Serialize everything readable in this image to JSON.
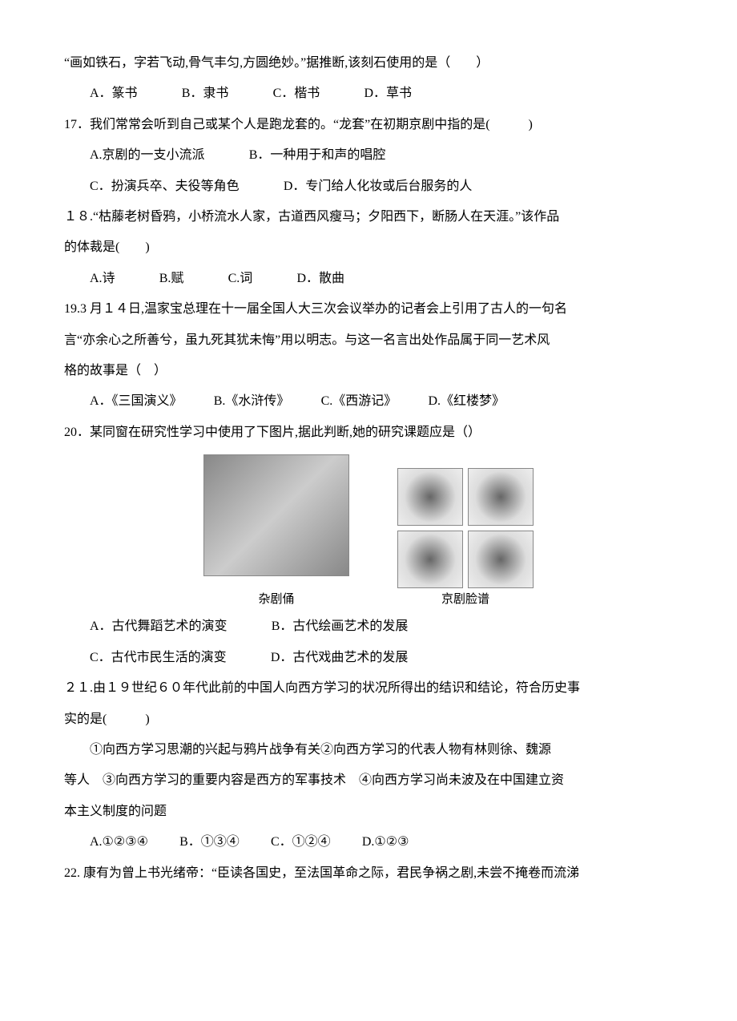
{
  "l1": "“画如铁石，字若飞动,骨气丰匀,方圆绝妙。”据推断,该刻石使用的是（　　）",
  "q16": {
    "A": "A．篆书",
    "B": "B．隶书",
    "C": "C．楷书",
    "D": "D．草书"
  },
  "q17": {
    "stem": "17．我们常常会听到自己或某个人是跑龙套的。“龙套”在初期京剧中指的是(　　　)",
    "A": "A.京剧的一支小流派",
    "B": "B．一种用于和声的唱腔",
    "C": "C．扮演兵卒、夫役等角色",
    "D": "D．专门给人化妆或后台服务的人"
  },
  "q18": {
    "stem1": "１８.“枯藤老树昏鸦，小桥流水人家，古道西风瘦马；夕阳西下，断肠人在天涯。”该作品",
    "stem2": "的体裁是(　　)",
    "A": "A.诗",
    "B": "B.赋",
    "C": "C.词",
    "D": "D．散曲"
  },
  "q19": {
    "stem1": "19.3 月１４日,温家宝总理在十一届全国人大三次会议举办的记者会上引用了古人的一句名",
    "stem2": "言“亦余心之所善兮，虽九死其犹未悔”用以明志。与这一名言出处作品属于同一艺术风",
    "stem3": "格的故事是（　）",
    "A": "A．《三国演义》",
    "B": "B.《水浒传》",
    "C": "C.《西游记》",
    "D": "D.《红楼梦》"
  },
  "q20": {
    "stem": "20．某同窗在研究性学习中使用了下图片,据此判断,她的研究课题应是（）",
    "cap1": "杂剧俑",
    "cap2": "京剧脸谱",
    "A": "A．古代舞蹈艺术的演变",
    "B": "B．古代绘画艺术的发展",
    "C": "C．古代市民生活的演变",
    "D": "D．古代戏曲艺术的发展",
    "img_style": {
      "zaju_w": 180,
      "zaju_h": 150,
      "lianpu_w": 80,
      "lianpu_h": 70,
      "gap": 60
    }
  },
  "q21": {
    "stem1": "２１.由１９世纪６０年代此前的中国人向西方学习的状况所得出的结识和结论，符合历史事",
    "stem2": "实的是(　　　)",
    "sub1": "　　①向西方学习思潮的兴起与鸦片战争有关②向西方学习的代表人物有林则徐、魏源",
    "sub2": "等人　③向西方学习的重要内容是西方的军事技术　④向西方学习尚未波及在中国建立资",
    "sub3": "本主义制度的问题",
    "A": "A.①②③④",
    "B": "B．①③④",
    "C": "C．①②④",
    "D": "D.①②③"
  },
  "q22": {
    "stem": "22.  康有为曾上书光绪帝：“臣读各国史，至法国革命之际，君民争祸之剧,未尝不掩卷而流涕"
  },
  "colors": {
    "text": "#000000",
    "background": "#ffffff",
    "img_border": "#888888"
  },
  "typography": {
    "font_family": "SimSun",
    "font_size_pt": 12,
    "line_height": 2.4
  }
}
